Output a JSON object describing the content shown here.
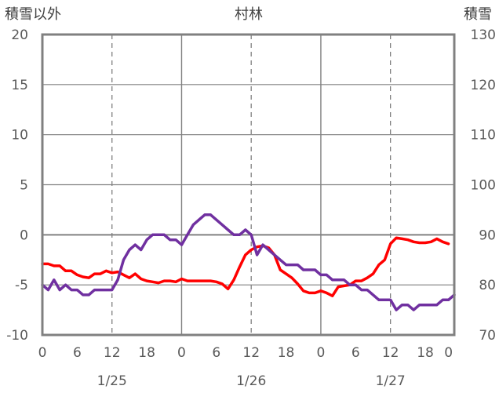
{
  "chart_data": {
    "type": "line",
    "title": "村林",
    "ylabel_left": "積雪以外",
    "ylabel_right": "積雪",
    "ylim_left": [
      -10,
      20
    ],
    "ylim_right": [
      70,
      130
    ],
    "yticks_left": [
      "20",
      "15",
      "10",
      "5",
      "0",
      "-5",
      "-10"
    ],
    "yticks_right": [
      "130",
      "120",
      "110",
      "100",
      "90",
      "80",
      "70"
    ],
    "x_hours_range": [
      0,
      71
    ],
    "xticks": [
      "0",
      "6",
      "12",
      "18",
      "0",
      "6",
      "12",
      "18",
      "0",
      "6",
      "12",
      "18",
      "0"
    ],
    "date_labels": [
      "1/25",
      "1/26",
      "1/27"
    ],
    "grid": "dashed vertical at 12:00 and solid vertical at 0:00; solid horizontal at 0",
    "series": [
      {
        "axis": "left",
        "color": "#ff0000",
        "points": [
          [
            0,
            -2.9
          ],
          [
            1,
            -2.9
          ],
          [
            2,
            -3.1
          ],
          [
            3,
            -3.1
          ],
          [
            4,
            -3.6
          ],
          [
            5,
            -3.6
          ],
          [
            6,
            -4.0
          ],
          [
            7,
            -4.2
          ],
          [
            8,
            -4.3
          ],
          [
            9,
            -3.9
          ],
          [
            10,
            -3.9
          ],
          [
            11,
            -3.6
          ],
          [
            12,
            -3.8
          ],
          [
            13,
            -3.7
          ],
          [
            14,
            -4.0
          ],
          [
            15,
            -4.3
          ],
          [
            16,
            -3.9
          ],
          [
            17,
            -4.4
          ],
          [
            18,
            -4.6
          ],
          [
            19,
            -4.7
          ],
          [
            20,
            -4.8
          ],
          [
            21,
            -4.6
          ],
          [
            22,
            -4.6
          ],
          [
            23,
            -4.7
          ],
          [
            24,
            -4.4
          ],
          [
            25,
            -4.6
          ],
          [
            26,
            -4.6
          ],
          [
            27,
            -4.6
          ],
          [
            28,
            -4.6
          ],
          [
            29,
            -4.6
          ],
          [
            30,
            -4.7
          ],
          [
            31,
            -4.9
          ],
          [
            32,
            -5.4
          ],
          [
            33,
            -4.5
          ],
          [
            34,
            -3.2
          ],
          [
            35,
            -2.0
          ],
          [
            36,
            -1.5
          ],
          [
            37,
            -1.2
          ],
          [
            38,
            -1.1
          ],
          [
            39,
            -1.3
          ],
          [
            40,
            -2.0
          ],
          [
            41,
            -3.5
          ],
          [
            42,
            -3.9
          ],
          [
            43,
            -4.3
          ],
          [
            44,
            -4.9
          ],
          [
            45,
            -5.6
          ],
          [
            46,
            -5.8
          ],
          [
            47,
            -5.8
          ],
          [
            48,
            -5.6
          ],
          [
            49,
            -5.8
          ],
          [
            50,
            -6.1
          ],
          [
            51,
            -5.2
          ],
          [
            52,
            -5.1
          ],
          [
            53,
            -5.0
          ],
          [
            54,
            -4.6
          ],
          [
            55,
            -4.6
          ],
          [
            56,
            -4.3
          ],
          [
            57,
            -3.9
          ],
          [
            58,
            -3.0
          ],
          [
            59,
            -2.5
          ],
          [
            60,
            -0.9
          ],
          [
            61,
            -0.3
          ],
          [
            62,
            -0.4
          ],
          [
            63,
            -0.5
          ],
          [
            64,
            -0.7
          ],
          [
            65,
            -0.8
          ],
          [
            66,
            -0.8
          ],
          [
            67,
            -0.7
          ],
          [
            68,
            -0.4
          ],
          [
            69,
            -0.7
          ],
          [
            70,
            -0.9
          ]
        ]
      },
      {
        "axis": "right",
        "color": "#7030a0",
        "points": [
          [
            0,
            80
          ],
          [
            1,
            79
          ],
          [
            2,
            81
          ],
          [
            3,
            79
          ],
          [
            4,
            80
          ],
          [
            5,
            79
          ],
          [
            6,
            79
          ],
          [
            7,
            78
          ],
          [
            8,
            78
          ],
          [
            9,
            79
          ],
          [
            10,
            79
          ],
          [
            11,
            79
          ],
          [
            12,
            79
          ],
          [
            13,
            81
          ],
          [
            14,
            85
          ],
          [
            15,
            87
          ],
          [
            16,
            88
          ],
          [
            17,
            87
          ],
          [
            18,
            89
          ],
          [
            19,
            90
          ],
          [
            20,
            90
          ],
          [
            21,
            90
          ],
          [
            22,
            89
          ],
          [
            23,
            89
          ],
          [
            24,
            88
          ],
          [
            25,
            90
          ],
          [
            26,
            92
          ],
          [
            27,
            93
          ],
          [
            28,
            94
          ],
          [
            29,
            94
          ],
          [
            30,
            93
          ],
          [
            31,
            92
          ],
          [
            32,
            91
          ],
          [
            33,
            90
          ],
          [
            34,
            90
          ],
          [
            35,
            91
          ],
          [
            36,
            90
          ],
          [
            37,
            86
          ],
          [
            38,
            88
          ],
          [
            39,
            87
          ],
          [
            40,
            86
          ],
          [
            41,
            85
          ],
          [
            42,
            84
          ],
          [
            43,
            84
          ],
          [
            44,
            84
          ],
          [
            45,
            83
          ],
          [
            46,
            83
          ],
          [
            47,
            83
          ],
          [
            48,
            82
          ],
          [
            49,
            82
          ],
          [
            50,
            81
          ],
          [
            51,
            81
          ],
          [
            52,
            81
          ],
          [
            53,
            80
          ],
          [
            54,
            80
          ],
          [
            55,
            79
          ],
          [
            56,
            79
          ],
          [
            57,
            78
          ],
          [
            58,
            77
          ],
          [
            59,
            77
          ],
          [
            60,
            77
          ],
          [
            61,
            75
          ],
          [
            62,
            76
          ],
          [
            63,
            76
          ],
          [
            64,
            75
          ],
          [
            65,
            76
          ],
          [
            66,
            76
          ],
          [
            67,
            76
          ],
          [
            68,
            76
          ],
          [
            69,
            77
          ],
          [
            70,
            77
          ],
          [
            71,
            78
          ]
        ]
      }
    ]
  }
}
